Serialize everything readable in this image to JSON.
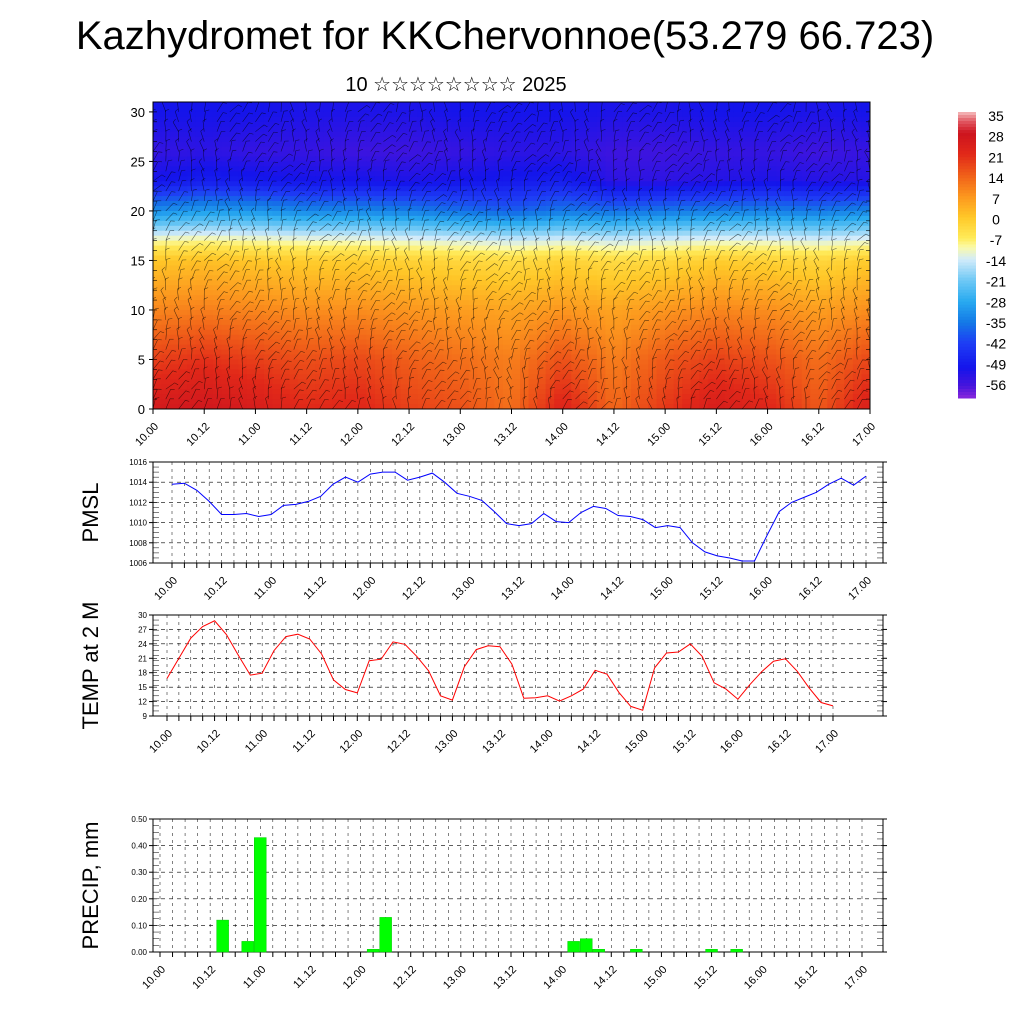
{
  "title": "Kazhydromet for KKChervonnoe(53.279 66.723)",
  "subtitle": "10 ☆☆☆☆☆☆☆☆ 2025",
  "colors": {
    "pmsl_line": "#0000ff",
    "temp_line": "#ff0000",
    "precip_bar": "#00ff00"
  },
  "chart_data": [
    {
      "id": "cross_section",
      "type": "heatmap",
      "title": "",
      "xlabel": "",
      "ylabel": "",
      "x_tick_labels": [
        "10.00",
        "10.12",
        "11.00",
        "11.12",
        "12.00",
        "12.12",
        "13.00",
        "13.12",
        "14.00",
        "14.12",
        "15.00",
        "15.12",
        "16.00",
        "16.12",
        "17.00"
      ],
      "y_ticks": [
        0,
        5,
        10,
        15,
        20,
        25,
        30
      ],
      "ylim": [
        0,
        31
      ],
      "colorbar_labels": [
        "35",
        "28",
        "21",
        "14",
        "7",
        "0",
        "-7",
        "-14",
        "-21",
        "-28",
        "-35",
        "-42",
        "-49",
        "-56"
      ],
      "overlay": "wind barbs",
      "temperature_grid": {
        "x_hours": [
          0,
          12,
          24,
          36,
          48,
          60,
          72,
          84,
          96,
          108,
          120,
          132,
          144,
          156,
          168
        ],
        "levels": [
          0,
          5,
          10,
          15,
          17,
          20,
          23,
          26,
          30
        ],
        "values": [
          [
            26,
            27,
            25,
            21,
            22,
            18,
            16,
            12,
            23,
            13,
            19,
            25,
            22,
            15,
            24
          ],
          [
            18,
            20,
            18,
            16,
            17,
            14,
            12,
            10,
            16,
            10,
            15,
            18,
            16,
            12,
            17
          ],
          [
            9,
            10,
            9,
            8,
            8,
            7,
            6,
            5,
            7,
            5,
            7,
            9,
            8,
            6,
            8
          ],
          [
            0,
            1,
            0,
            -1,
            -1,
            -2,
            -3,
            -4,
            -2,
            -4,
            -3,
            -1,
            -2,
            -3,
            -1
          ],
          [
            -10,
            -9,
            -10,
            -11,
            -11,
            -12,
            -13,
            -14,
            -13,
            -14,
            -13,
            -12,
            -12,
            -13,
            -12
          ],
          [
            -32,
            -30,
            -31,
            -33,
            -33,
            -34,
            -36,
            -38,
            -35,
            -36,
            -35,
            -34,
            -34,
            -35,
            -33
          ],
          [
            -50,
            -48,
            -49,
            -50,
            -50,
            -51,
            -50,
            -49,
            -48,
            -53,
            -53,
            -52,
            -51,
            -52,
            -52
          ],
          [
            -54,
            -53,
            -54,
            -54,
            -55,
            -55,
            -54,
            -53,
            -53,
            -55,
            -55,
            -54,
            -54,
            -55,
            -54
          ],
          [
            -50,
            -50,
            -50,
            -51,
            -51,
            -51,
            -50,
            -50,
            -50,
            -51,
            -51,
            -50,
            -50,
            -51,
            -50
          ]
        ]
      }
    },
    {
      "id": "pmsl",
      "type": "line",
      "title": "",
      "ylabel": "PMSL",
      "xlabel": "",
      "x_tick_labels": [
        "10.00",
        "10.12",
        "11.00",
        "11.12",
        "12.00",
        "12.12",
        "13.00",
        "13.12",
        "14.00",
        "14.12",
        "15.00",
        "15.12",
        "16.00",
        "16.12",
        "17.00"
      ],
      "y_ticks": [
        "1006",
        "1008",
        "1010",
        "1012",
        "1014",
        "1016"
      ],
      "ylim": [
        1006,
        1016
      ],
      "x_step_hours": 3,
      "series": [
        {
          "values": [
            1013.8,
            1013.9,
            1013.2,
            1012.1,
            1010.8,
            1010.8,
            1010.9,
            1010.6,
            1010.8,
            1011.7,
            1011.8,
            1012.1,
            1012.6,
            1013.8,
            1014.5,
            1014.0,
            1014.8,
            1015.0,
            1015.0,
            1014.2,
            1014.5,
            1014.9,
            1014.0,
            1012.9,
            1012.6,
            1012.2,
            1011.1,
            1009.9,
            1009.7,
            1009.9,
            1010.9,
            1010.1,
            1010.0,
            1011.0,
            1011.6,
            1011.4,
            1010.7,
            1010.6,
            1010.3,
            1009.5,
            1009.7,
            1009.5,
            1008.0,
            1007.1,
            1006.7,
            1006.5,
            1006.2,
            1006.2,
            1008.7,
            1011.1,
            1012.0,
            1012.5,
            1013.0,
            1013.8,
            1014.4,
            1013.7,
            1014.6
          ]
        }
      ]
    },
    {
      "id": "temp2m",
      "type": "line",
      "title": "",
      "ylabel": "TEMP at 2 M",
      "xlabel": "",
      "x_tick_labels": [
        "10.00",
        "10.12",
        "11.00",
        "11.12",
        "12.00",
        "12.12",
        "13.00",
        "13.12",
        "14.00",
        "14.12",
        "15.00",
        "15.12",
        "16.00",
        "16.12",
        "17.00"
      ],
      "y_ticks": [
        "9",
        "12",
        "15",
        "18",
        "21",
        "24",
        "27",
        "30"
      ],
      "ylim": [
        9,
        30
      ],
      "x_step_hours": 3,
      "series": [
        {
          "values": [
            16.8,
            21.0,
            25.2,
            27.6,
            28.8,
            25.9,
            21.6,
            17.5,
            17.9,
            22.6,
            25.5,
            26.0,
            25.0,
            21.9,
            16.5,
            14.5,
            13.8,
            20.5,
            20.8,
            24.4,
            23.9,
            21.4,
            18.4,
            13.2,
            12.3,
            19.2,
            22.8,
            23.6,
            23.4,
            19.8,
            12.7,
            12.8,
            13.2,
            12.1,
            13.2,
            14.6,
            18.5,
            17.7,
            13.9,
            11.0,
            10.2,
            19.0,
            22.1,
            22.3,
            24.0,
            21.4,
            15.9,
            14.6,
            12.5,
            15.5,
            18.2,
            20.4,
            20.9,
            18.3,
            14.8,
            11.8,
            11.1
          ]
        }
      ]
    },
    {
      "id": "precip",
      "type": "bar",
      "title": "",
      "ylabel": "PRECIP, mm",
      "xlabel": "",
      "x_tick_labels": [
        "10.00",
        "10.12",
        "11.00",
        "11.12",
        "12.00",
        "12.12",
        "13.00",
        "13.12",
        "14.00",
        "14.12",
        "15.00",
        "15.12",
        "16.00",
        "16.12",
        "17.00"
      ],
      "y_ticks": [
        "0.00",
        "0.10",
        "0.20",
        "0.30",
        "0.40",
        "0.50"
      ],
      "ylim": [
        0,
        0.5
      ],
      "x_step_hours": 3,
      "series": [
        {
          "values": [
            0,
            0,
            0,
            0,
            0,
            0.12,
            0,
            0.04,
            0.43,
            0,
            0,
            0,
            0,
            0,
            0,
            0,
            0,
            0.01,
            0.13,
            0,
            0,
            0,
            0,
            0,
            0,
            0,
            0,
            0,
            0,
            0,
            0,
            0,
            0,
            0.04,
            0.05,
            0.01,
            0,
            0,
            0.01,
            0,
            0,
            0,
            0,
            0,
            0.01,
            0,
            0.01,
            0,
            0,
            0,
            0,
            0,
            0,
            0,
            0,
            0,
            0
          ]
        }
      ]
    }
  ]
}
